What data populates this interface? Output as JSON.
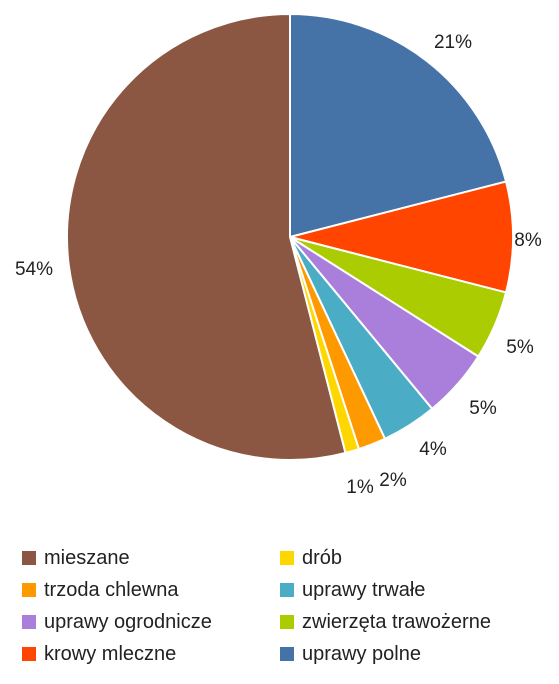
{
  "chart_data": {
    "type": "pie",
    "start_angle_deg": 0,
    "direction": "clockwise",
    "slices": [
      {
        "label": "uprawy polne",
        "value": 21,
        "value_label": "21%",
        "color": "#4572A7"
      },
      {
        "label": "krowy mleczne",
        "value": 8,
        "value_label": "8%",
        "color": "#FF4500"
      },
      {
        "label": "zwierzęta trawożerne",
        "value": 5,
        "value_label": "5%",
        "color": "#AACC00"
      },
      {
        "label": "uprawy ogrodnicze",
        "value": 5,
        "value_label": "5%",
        "color": "#A97FDB"
      },
      {
        "label": "uprawy trwałe",
        "value": 4,
        "value_label": "4%",
        "color": "#4BACC6"
      },
      {
        "label": "trzoda chlewna",
        "value": 2,
        "value_label": "2%",
        "color": "#FF9900"
      },
      {
        "label": "drób",
        "value": 1,
        "value_label": "1%",
        "color": "#FFD700"
      },
      {
        "label": "mieszane",
        "value": 54,
        "value_label": "54%",
        "color": "#8B5742"
      }
    ],
    "legend": {
      "placement": "bottom",
      "rows": [
        [
          {
            "label": "mieszane",
            "color": "#8B5742"
          },
          {
            "label": "drób",
            "color": "#FFD700"
          }
        ],
        [
          {
            "label": "trzoda chlewna",
            "color": "#FF9900"
          },
          {
            "label": "uprawy trwałe",
            "color": "#4BACC6"
          }
        ],
        [
          {
            "label": "uprawy ogrodnicze",
            "color": "#A97FDB"
          },
          {
            "label": "zwierzęta trawożerne",
            "color": "#AACC00"
          }
        ],
        [
          {
            "label": "krowy mleczne",
            "color": "#FF4500"
          },
          {
            "label": "uprawy polne",
            "color": "#4572A7"
          }
        ]
      ]
    }
  }
}
